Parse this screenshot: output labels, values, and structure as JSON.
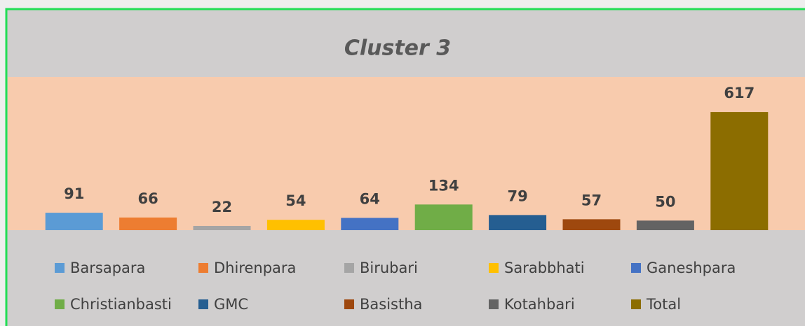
{
  "chart_data": {
    "type": "bar",
    "title": "Cluster 3",
    "categories": [
      "Barsapara",
      "Dhirenpara",
      "Birubari",
      "Sarabbhati",
      "Ganeshpara",
      "Christianbasti",
      "GMC",
      "Basistha",
      "Kotahbari",
      "Total"
    ],
    "values": [
      91,
      66,
      22,
      54,
      64,
      134,
      79,
      57,
      50,
      617
    ],
    "colors": [
      "#5b9bd5",
      "#ed7d31",
      "#a5a5a5",
      "#ffc000",
      "#4472c4",
      "#70ad47",
      "#255e91",
      "#9e480e",
      "#636363",
      "#8c6d00"
    ],
    "ylim": [
      0,
      800
    ]
  }
}
